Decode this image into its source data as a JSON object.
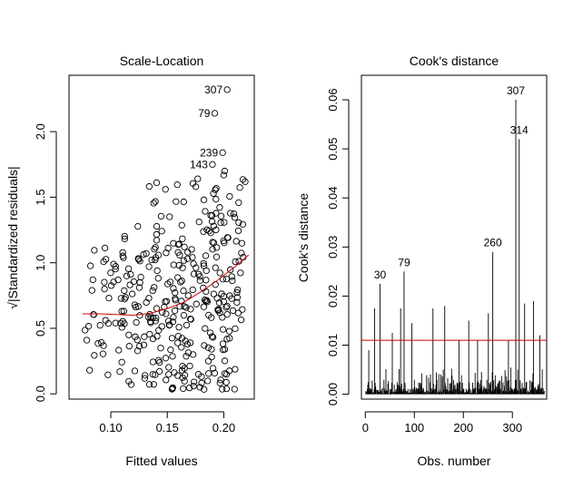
{
  "chart_data": [
    {
      "type": "scatter",
      "title": "Scale-Location",
      "xlabel": "Fitted values",
      "ylabel": "√|Standardized residuals|",
      "xlim": [
        0.063,
        0.227
      ],
      "ylim": [
        -0.04,
        2.43
      ],
      "xticks": [
        0.1,
        0.15,
        0.2
      ],
      "xtick_labels": [
        "0.10",
        "0.15",
        "0.20"
      ],
      "yticks": [
        0.0,
        0.5,
        1.0,
        1.5,
        2.0
      ],
      "ytick_labels": [
        "0.0",
        "0.5",
        "1.0",
        "1.5",
        "2.0"
      ],
      "grid": false,
      "point_color": "#000000",
      "smooth_color": "#cc0000",
      "labeled_points": [
        {
          "label": "307",
          "x": 0.203,
          "y": 2.32
        },
        {
          "label": "79",
          "x": 0.192,
          "y": 2.14
        },
        {
          "label": "239",
          "x": 0.199,
          "y": 1.84
        },
        {
          "label": "143",
          "x": 0.19,
          "y": 1.75
        }
      ],
      "smooth": {
        "x": [
          0.075,
          0.09,
          0.105,
          0.12,
          0.135,
          0.15,
          0.165,
          0.18,
          0.195,
          0.21,
          0.222
        ],
        "y": [
          0.61,
          0.61,
          0.605,
          0.6,
          0.615,
          0.65,
          0.7,
          0.78,
          0.87,
          0.97,
          1.06
        ]
      }
    },
    {
      "type": "bar",
      "title": "Cook's distance",
      "xlabel": "Obs. number",
      "ylabel": "Cook's distance",
      "xlim": [
        -8,
        370
      ],
      "ylim": [
        -0.001,
        0.065
      ],
      "xticks": [
        0,
        100,
        200,
        300
      ],
      "xtick_labels": [
        "0",
        "100",
        "200",
        "300"
      ],
      "yticks": [
        0.0,
        0.01,
        0.02,
        0.03,
        0.04,
        0.05,
        0.06
      ],
      "ytick_labels": [
        "0.00",
        "0.01",
        "0.02",
        "0.03",
        "0.04",
        "0.05",
        "0.06"
      ],
      "grid": false,
      "n_obs": 365,
      "reference_line": {
        "value": 0.011,
        "color": "#cc0000"
      },
      "labeled_points": [
        {
          "label": "30",
          "x": 30,
          "y": 0.0225
        },
        {
          "label": "79",
          "x": 79,
          "y": 0.025
        },
        {
          "label": "260",
          "x": 260,
          "y": 0.029
        },
        {
          "label": "307",
          "x": 307,
          "y": 0.06
        },
        {
          "label": "314",
          "x": 314,
          "y": 0.052
        }
      ],
      "notable_bars": [
        {
          "x": 7,
          "y": 0.009
        },
        {
          "x": 19,
          "y": 0.0175
        },
        {
          "x": 55,
          "y": 0.0125
        },
        {
          "x": 72,
          "y": 0.0175
        },
        {
          "x": 95,
          "y": 0.0145
        },
        {
          "x": 138,
          "y": 0.0175
        },
        {
          "x": 162,
          "y": 0.018
        },
        {
          "x": 191,
          "y": 0.011
        },
        {
          "x": 211,
          "y": 0.015
        },
        {
          "x": 229,
          "y": 0.011
        },
        {
          "x": 251,
          "y": 0.0165
        },
        {
          "x": 292,
          "y": 0.011
        },
        {
          "x": 325,
          "y": 0.0185
        },
        {
          "x": 343,
          "y": 0.019
        },
        {
          "x": 356,
          "y": 0.012
        }
      ]
    }
  ]
}
